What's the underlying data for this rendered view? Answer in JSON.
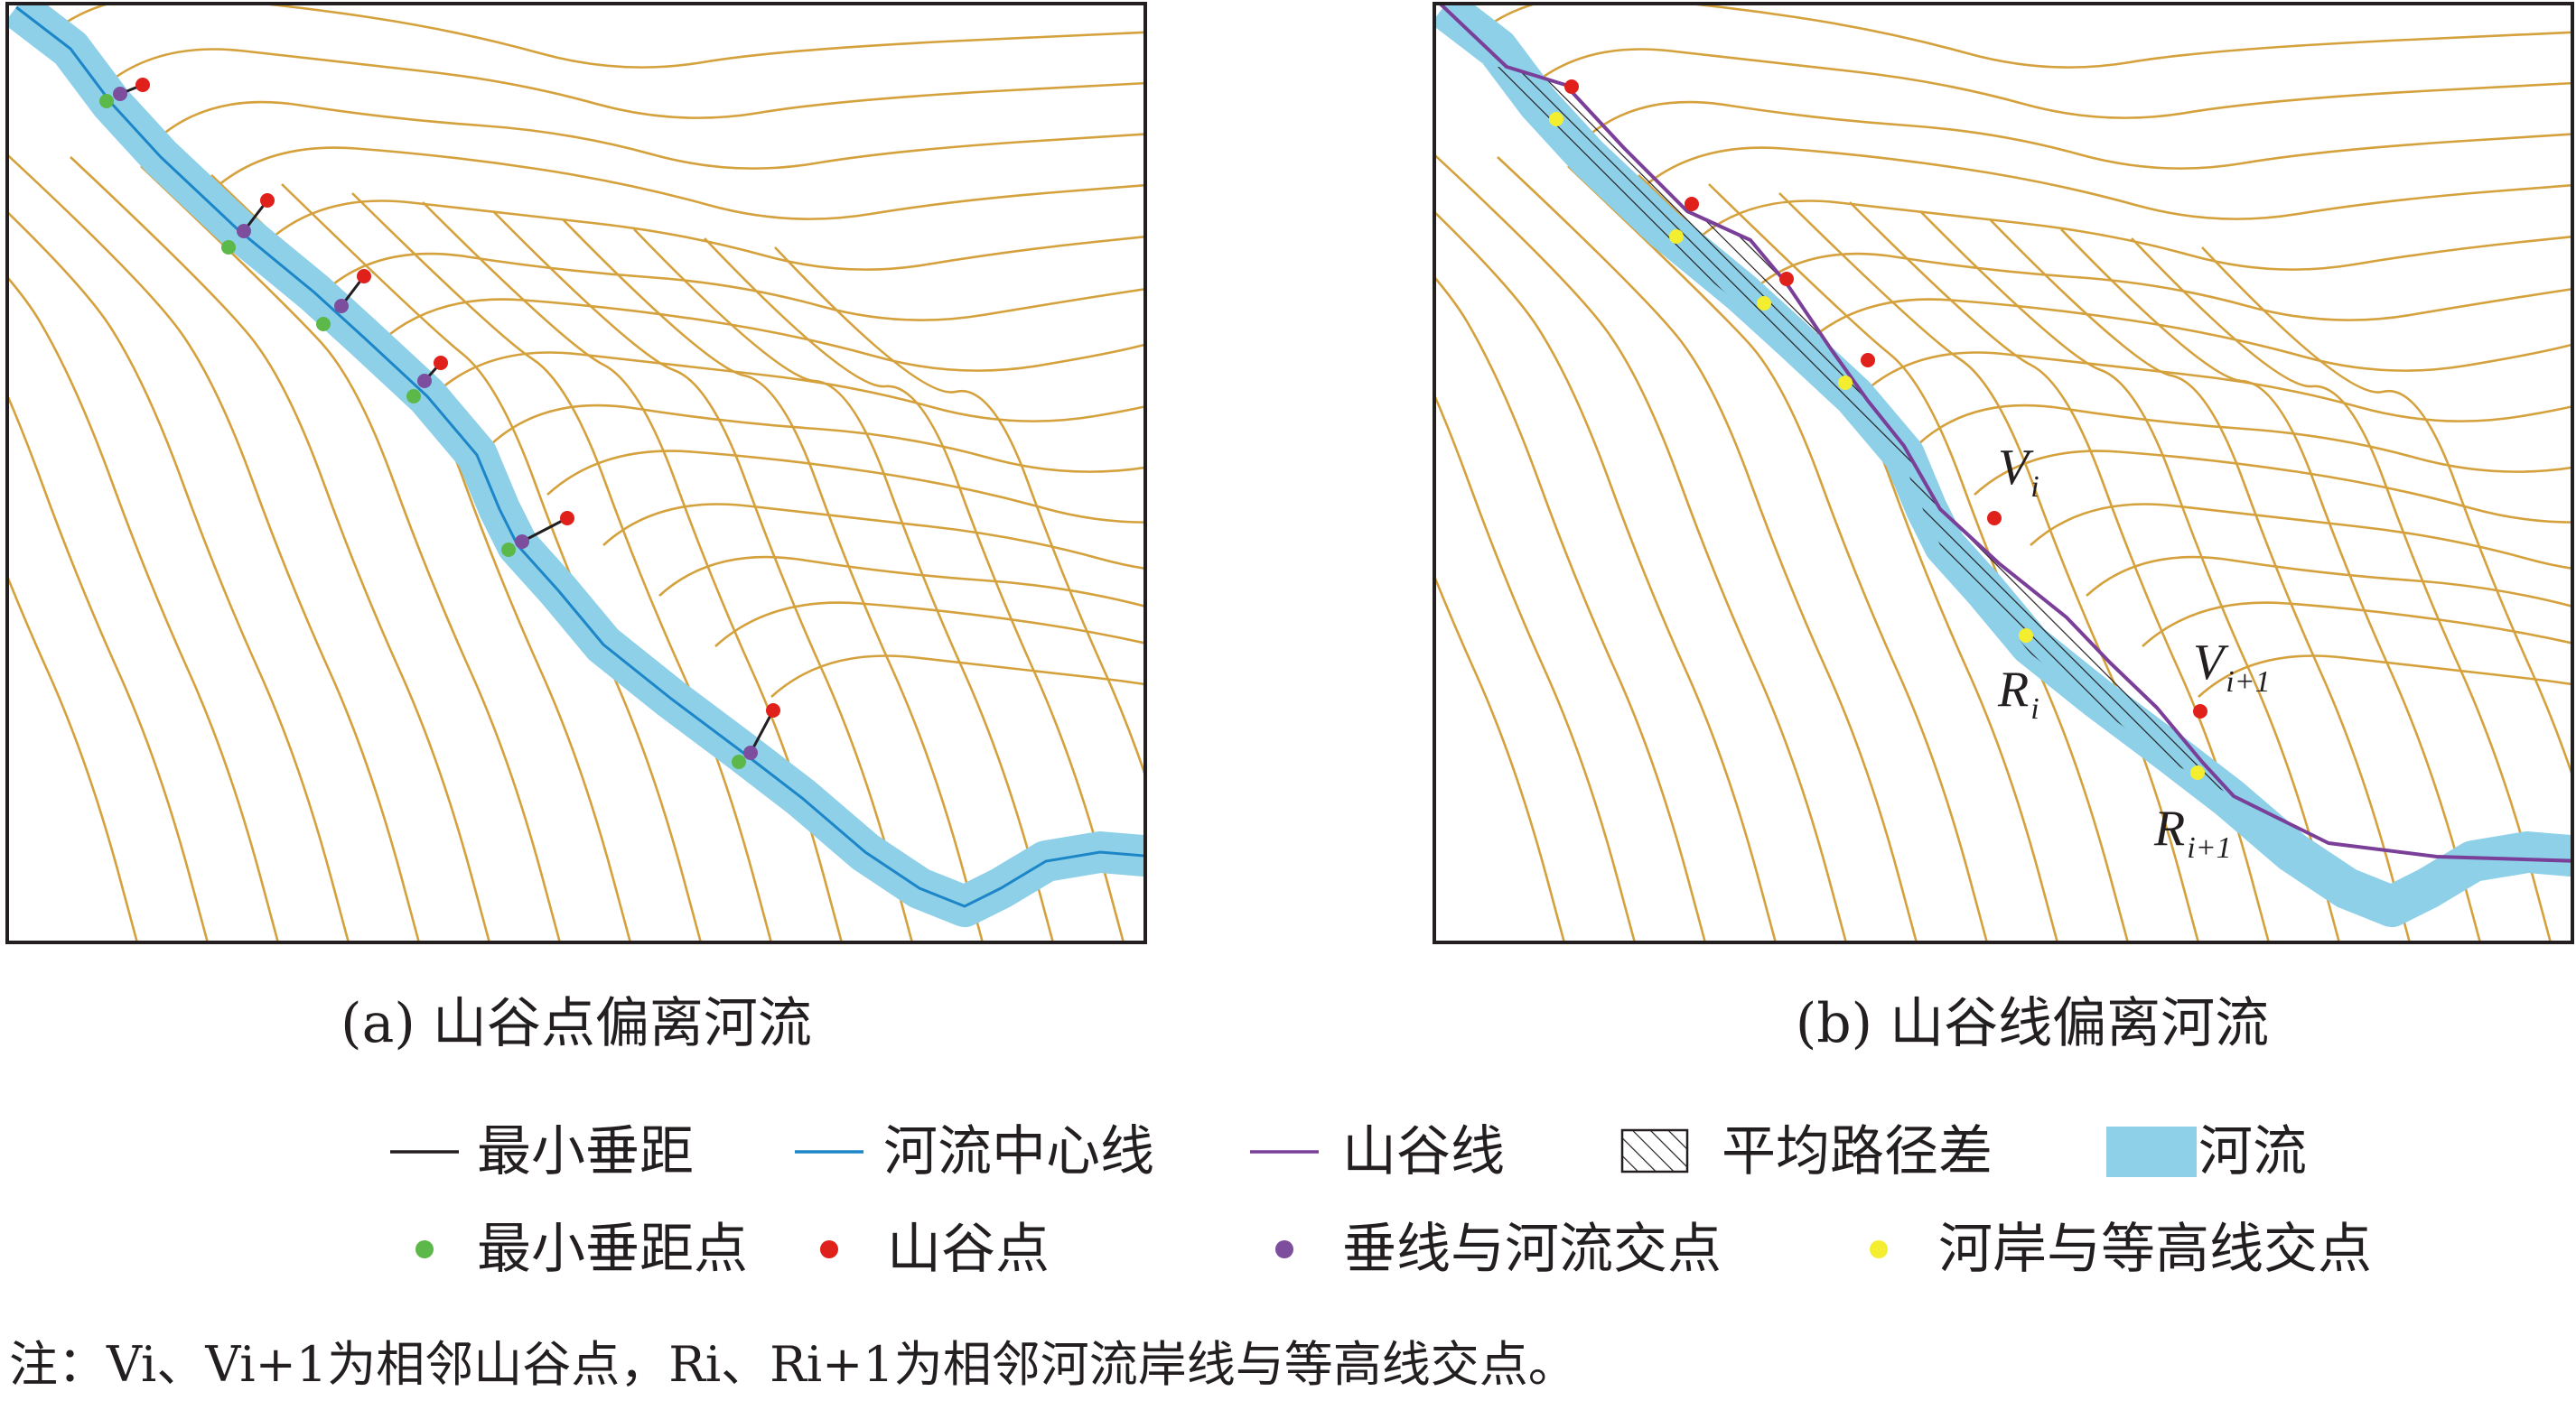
{
  "panels": {
    "a": {
      "caption": "(a) 山谷点偏离河流"
    },
    "b": {
      "caption": "(b) 山谷线偏离河流",
      "labels": {
        "vi": {
          "main": "V",
          "sub": "i"
        },
        "vi1": {
          "main": "V",
          "sub": "i+1"
        },
        "ri": {
          "main": "R",
          "sub": "i"
        },
        "ri1": {
          "main": "R",
          "sub": "i+1"
        }
      }
    }
  },
  "legend": {
    "row1": [
      "最小垂距",
      "河流中心线",
      "山谷线",
      "平均路径差",
      "河流"
    ],
    "row2": [
      "最小垂距点",
      "山谷点",
      "垂线与河流交点",
      "河岸与等高线交点"
    ]
  },
  "note": "注：Vi、Vi+1为相邻山谷点，Ri、Ri+1为相邻河流岸线与等高线交点。",
  "colors": {
    "contour": "#d4a13c",
    "river_fill": "#8dd0e8",
    "river_edge": "#5bb7d9",
    "centerline": "#1d86c8",
    "valley_line": "#7a3f98",
    "min_distance": "#231f20",
    "min_distance_point": "#5db84a",
    "valley_point": "#e0201b",
    "perpendicular_point": "#7d4d9e",
    "bank_contour_point": "#f3ee2f",
    "frame": "#231f20"
  }
}
